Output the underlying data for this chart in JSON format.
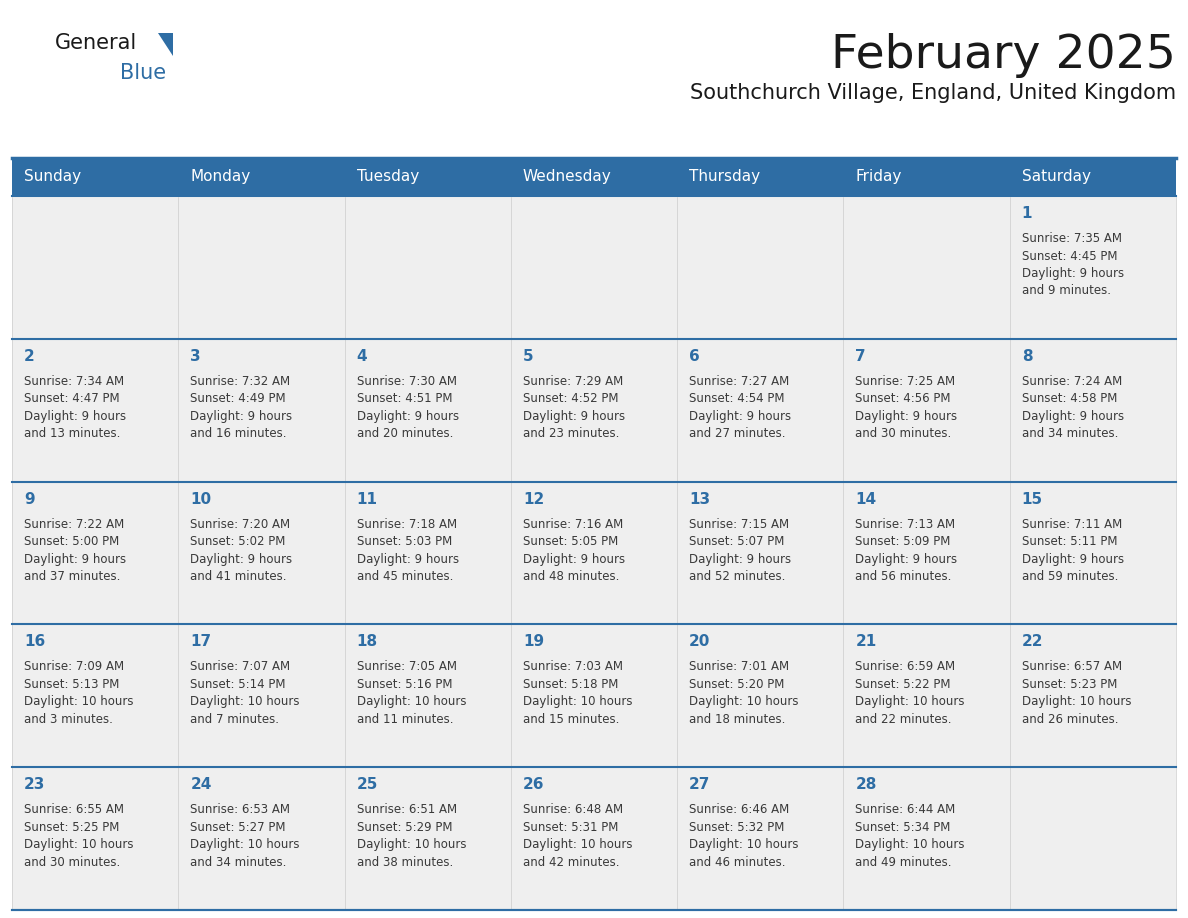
{
  "title": "February 2025",
  "subtitle": "Southchurch Village, England, United Kingdom",
  "header_bg": "#2E6DA4",
  "header_text_color": "#FFFFFF",
  "cell_bg": "#EFEFEF",
  "cell_bg_empty": "#EFEFEF",
  "day_number_color": "#2E6DA4",
  "info_text_color": "#3a3a3a",
  "border_color": "#2E6DA4",
  "week_sep_color": "#2E6DA4",
  "days_of_week": [
    "Sunday",
    "Monday",
    "Tuesday",
    "Wednesday",
    "Thursday",
    "Friday",
    "Saturday"
  ],
  "weeks": [
    [
      {
        "day": null,
        "info": null
      },
      {
        "day": null,
        "info": null
      },
      {
        "day": null,
        "info": null
      },
      {
        "day": null,
        "info": null
      },
      {
        "day": null,
        "info": null
      },
      {
        "day": null,
        "info": null
      },
      {
        "day": 1,
        "info": "Sunrise: 7:35 AM\nSunset: 4:45 PM\nDaylight: 9 hours\nand 9 minutes."
      }
    ],
    [
      {
        "day": 2,
        "info": "Sunrise: 7:34 AM\nSunset: 4:47 PM\nDaylight: 9 hours\nand 13 minutes."
      },
      {
        "day": 3,
        "info": "Sunrise: 7:32 AM\nSunset: 4:49 PM\nDaylight: 9 hours\nand 16 minutes."
      },
      {
        "day": 4,
        "info": "Sunrise: 7:30 AM\nSunset: 4:51 PM\nDaylight: 9 hours\nand 20 minutes."
      },
      {
        "day": 5,
        "info": "Sunrise: 7:29 AM\nSunset: 4:52 PM\nDaylight: 9 hours\nand 23 minutes."
      },
      {
        "day": 6,
        "info": "Sunrise: 7:27 AM\nSunset: 4:54 PM\nDaylight: 9 hours\nand 27 minutes."
      },
      {
        "day": 7,
        "info": "Sunrise: 7:25 AM\nSunset: 4:56 PM\nDaylight: 9 hours\nand 30 minutes."
      },
      {
        "day": 8,
        "info": "Sunrise: 7:24 AM\nSunset: 4:58 PM\nDaylight: 9 hours\nand 34 minutes."
      }
    ],
    [
      {
        "day": 9,
        "info": "Sunrise: 7:22 AM\nSunset: 5:00 PM\nDaylight: 9 hours\nand 37 minutes."
      },
      {
        "day": 10,
        "info": "Sunrise: 7:20 AM\nSunset: 5:02 PM\nDaylight: 9 hours\nand 41 minutes."
      },
      {
        "day": 11,
        "info": "Sunrise: 7:18 AM\nSunset: 5:03 PM\nDaylight: 9 hours\nand 45 minutes."
      },
      {
        "day": 12,
        "info": "Sunrise: 7:16 AM\nSunset: 5:05 PM\nDaylight: 9 hours\nand 48 minutes."
      },
      {
        "day": 13,
        "info": "Sunrise: 7:15 AM\nSunset: 5:07 PM\nDaylight: 9 hours\nand 52 minutes."
      },
      {
        "day": 14,
        "info": "Sunrise: 7:13 AM\nSunset: 5:09 PM\nDaylight: 9 hours\nand 56 minutes."
      },
      {
        "day": 15,
        "info": "Sunrise: 7:11 AM\nSunset: 5:11 PM\nDaylight: 9 hours\nand 59 minutes."
      }
    ],
    [
      {
        "day": 16,
        "info": "Sunrise: 7:09 AM\nSunset: 5:13 PM\nDaylight: 10 hours\nand 3 minutes."
      },
      {
        "day": 17,
        "info": "Sunrise: 7:07 AM\nSunset: 5:14 PM\nDaylight: 10 hours\nand 7 minutes."
      },
      {
        "day": 18,
        "info": "Sunrise: 7:05 AM\nSunset: 5:16 PM\nDaylight: 10 hours\nand 11 minutes."
      },
      {
        "day": 19,
        "info": "Sunrise: 7:03 AM\nSunset: 5:18 PM\nDaylight: 10 hours\nand 15 minutes."
      },
      {
        "day": 20,
        "info": "Sunrise: 7:01 AM\nSunset: 5:20 PM\nDaylight: 10 hours\nand 18 minutes."
      },
      {
        "day": 21,
        "info": "Sunrise: 6:59 AM\nSunset: 5:22 PM\nDaylight: 10 hours\nand 22 minutes."
      },
      {
        "day": 22,
        "info": "Sunrise: 6:57 AM\nSunset: 5:23 PM\nDaylight: 10 hours\nand 26 minutes."
      }
    ],
    [
      {
        "day": 23,
        "info": "Sunrise: 6:55 AM\nSunset: 5:25 PM\nDaylight: 10 hours\nand 30 minutes."
      },
      {
        "day": 24,
        "info": "Sunrise: 6:53 AM\nSunset: 5:27 PM\nDaylight: 10 hours\nand 34 minutes."
      },
      {
        "day": 25,
        "info": "Sunrise: 6:51 AM\nSunset: 5:29 PM\nDaylight: 10 hours\nand 38 minutes."
      },
      {
        "day": 26,
        "info": "Sunrise: 6:48 AM\nSunset: 5:31 PM\nDaylight: 10 hours\nand 42 minutes."
      },
      {
        "day": 27,
        "info": "Sunrise: 6:46 AM\nSunset: 5:32 PM\nDaylight: 10 hours\nand 46 minutes."
      },
      {
        "day": 28,
        "info": "Sunrise: 6:44 AM\nSunset: 5:34 PM\nDaylight: 10 hours\nand 49 minutes."
      },
      {
        "day": null,
        "info": null
      }
    ]
  ],
  "logo_text1": "General",
  "logo_text2": "Blue",
  "logo_color1": "#1a1a1a",
  "logo_color2": "#2E6DA4",
  "logo_triangle_color": "#2E6DA4",
  "title_fontsize": 34,
  "subtitle_fontsize": 15,
  "header_day_fontsize": 11,
  "day_num_fontsize": 11,
  "info_fontsize": 8.5
}
